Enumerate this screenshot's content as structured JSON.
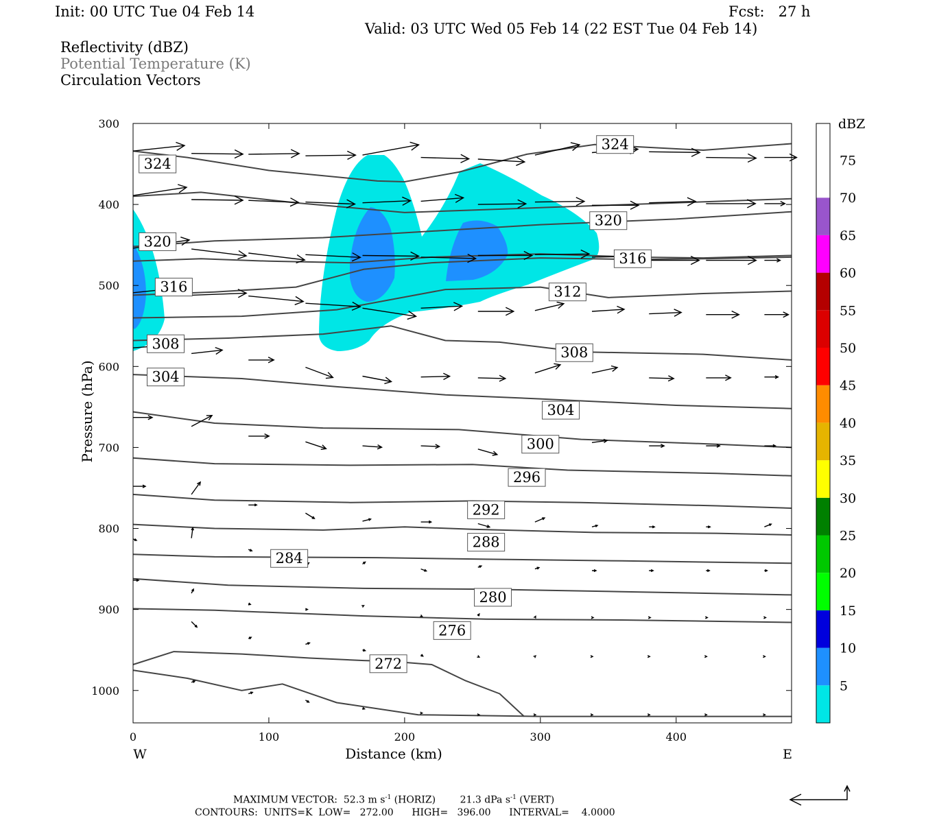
{
  "header": {
    "init": "Init: 00 UTC Tue 04 Feb 14",
    "fcst": "Fcst:   27 h",
    "valid": "Valid: 03 UTC Wed 05 Feb 14 (22 EST Tue 04 Feb 14)",
    "fields": [
      "Reflectivity (dBZ)",
      "Potential Temperature (K)",
      "Circulation Vectors"
    ]
  },
  "footer": {
    "maxvec_prefix": "MAXIMUM VECTOR:  52.3 m s",
    "maxvec_exp1": "-1",
    "maxvec_mid": " (HORIZ)        21.3 dPa s",
    "maxvec_exp2": "-1",
    "maxvec_suffix": " (VERT)",
    "contours": "CONTOURS:  UNITS=K  LOW=   272.00      HIGH=   396.00      INTERVAL=    4.0000"
  },
  "colors": {
    "c5": "#00e6e6",
    "c10": "#1e90ff",
    "contour": "#444444",
    "palette": [
      "#00e6e6",
      "#1e90ff",
      "#0000dd",
      "#00ff00",
      "#00c800",
      "#008000",
      "#ffff00",
      "#e6b400",
      "#ff8c00",
      "#ff0000",
      "#dc0000",
      "#b40000",
      "#ff00ff",
      "#9955cc",
      "#ffffff"
    ]
  },
  "chart_data": {
    "type": "cross-section",
    "xlabel": "Distance (km)",
    "ylabel": "Pressure (hPa)",
    "xlim": [
      0,
      485
    ],
    "ylim": [
      1040,
      300
    ],
    "xticks": [
      0,
      100,
      200,
      300,
      400
    ],
    "yticks": [
      300,
      400,
      500,
      600,
      700,
      800,
      900,
      1000
    ],
    "x_end_labels": {
      "left": "W",
      "right": "E"
    },
    "colorbar": {
      "title": "dBZ",
      "levels": [
        5,
        10,
        15,
        20,
        25,
        30,
        35,
        40,
        45,
        50,
        55,
        60,
        65,
        70,
        75
      ]
    },
    "contour_labels": [
      {
        "value": "324",
        "x": 18,
        "p": 350
      },
      {
        "value": "324",
        "x": 355,
        "p": 326
      },
      {
        "value": "320",
        "x": 18,
        "p": 446
      },
      {
        "value": "320",
        "x": 350,
        "p": 420
      },
      {
        "value": "316",
        "x": 30,
        "p": 502
      },
      {
        "value": "316",
        "x": 368,
        "p": 467
      },
      {
        "value": "312",
        "x": 320,
        "p": 508
      },
      {
        "value": "308",
        "x": 24,
        "p": 572
      },
      {
        "value": "308",
        "x": 325,
        "p": 583
      },
      {
        "value": "304",
        "x": 24,
        "p": 613
      },
      {
        "value": "304",
        "x": 315,
        "p": 654
      },
      {
        "value": "300",
        "x": 300,
        "p": 696
      },
      {
        "value": "296",
        "x": 290,
        "p": 737
      },
      {
        "value": "292",
        "x": 260,
        "p": 777
      },
      {
        "value": "288",
        "x": 260,
        "p": 817
      },
      {
        "value": "284",
        "x": 115,
        "p": 837
      },
      {
        "value": "280",
        "x": 265,
        "p": 885
      },
      {
        "value": "276",
        "x": 235,
        "p": 926
      },
      {
        "value": "272",
        "x": 188,
        "p": 967
      }
    ]
  }
}
